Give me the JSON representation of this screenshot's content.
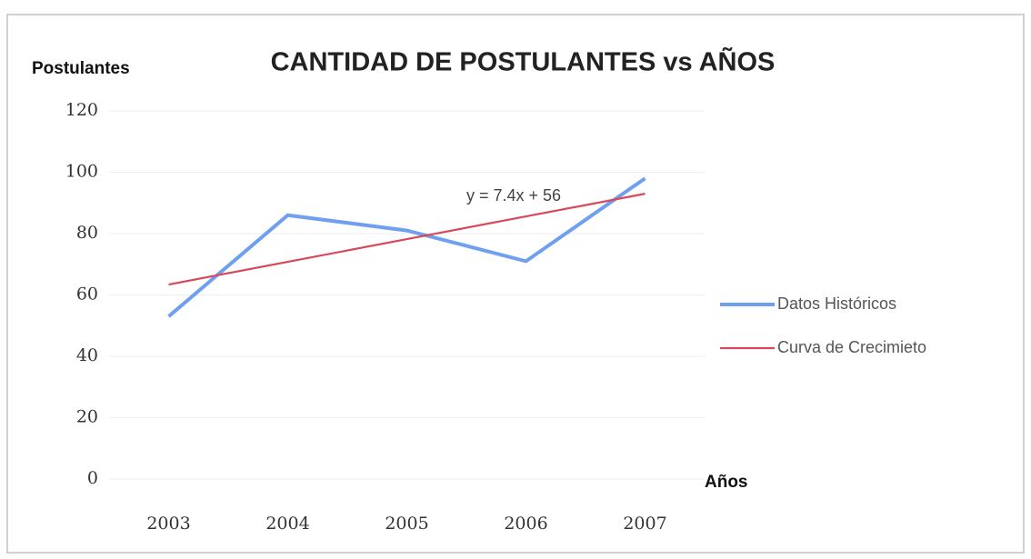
{
  "chart_data": {
    "type": "line",
    "title": "CANTIDAD DE POSTULANTES vs AÑOS",
    "y_label": "Postulantes",
    "x_label": "Años",
    "annotation": "y = 7.4x + 56",
    "categories": [
      "2003",
      "2004",
      "2005",
      "2006",
      "2007"
    ],
    "series": [
      {
        "name": "Datos Históricos",
        "color": "#6fa0f0",
        "values": [
          53,
          86,
          81,
          71,
          98
        ]
      },
      {
        "name": "Curva de Crecimieto",
        "color": "#d9485a",
        "values": [
          63.4,
          70.8,
          78.2,
          85.6,
          93
        ]
      }
    ],
    "ylim": [
      0,
      120
    ],
    "yticks": [
      0,
      20,
      40,
      60,
      80,
      100,
      120
    ],
    "grid": true,
    "legend": "right"
  }
}
